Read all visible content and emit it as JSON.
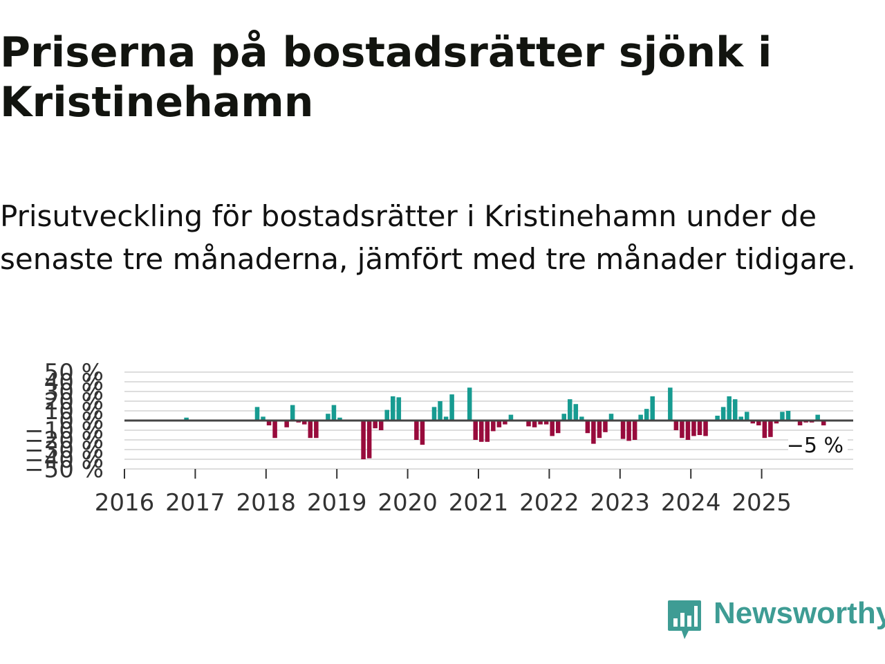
{
  "title": "Priserna på bostadsrätter sjönk i Kristinehamn",
  "subtitle": "Prisutveckling för bostadsrätter i Kristinehamn under de senaste tre månaderna, jämfört med tre månader tidigare.",
  "brand": {
    "name": "Newsworthy"
  },
  "colors": {
    "positive": "#179b91",
    "negative": "#980b3c",
    "grid": "#dddddd",
    "zero": "#444444",
    "brand": "#3e9c94"
  },
  "chart_data": {
    "type": "bar",
    "title": "",
    "xlabel": "",
    "ylabel": "",
    "ylim": [
      -50,
      50
    ],
    "y_ticks": [
      -50,
      -40,
      -30,
      -20,
      -10,
      0,
      10,
      20,
      30,
      40,
      50
    ],
    "y_tick_labels": [
      "−50 %",
      "−40 %",
      "−30 %",
      "−20 %",
      "−10 %",
      "0 %",
      "10 %",
      "20 %",
      "30 %",
      "40 %",
      "50 %"
    ],
    "x_tick_labels": [
      "2016",
      "2017",
      "2018",
      "2019",
      "2020",
      "2021",
      "2022",
      "2023",
      "2024",
      "2025"
    ],
    "start": "2016-01",
    "values": [
      null,
      null,
      null,
      null,
      null,
      null,
      null,
      null,
      null,
      null,
      3,
      null,
      null,
      null,
      null,
      null,
      null,
      null,
      null,
      null,
      null,
      null,
      14,
      4,
      -5,
      -18,
      null,
      -7,
      16,
      -2,
      -4,
      -18,
      -18,
      null,
      7,
      16,
      3,
      -1,
      null,
      null,
      -40,
      -39,
      -8,
      -10,
      11,
      25,
      24,
      null,
      null,
      -20,
      -25,
      null,
      14,
      20,
      4,
      27,
      null,
      null,
      34,
      -20,
      -22,
      -22,
      -11,
      -7,
      -4,
      6,
      null,
      null,
      -6,
      -7,
      -4,
      -4,
      -16,
      -13,
      7,
      22,
      17,
      4,
      -13,
      -24,
      -18,
      -12,
      7,
      null,
      -19,
      -21,
      -20,
      6,
      12,
      25,
      null,
      null,
      34,
      -10,
      -18,
      -20,
      -16,
      -15,
      -16,
      null,
      5,
      14,
      25,
      22,
      4,
      9,
      -3,
      -5,
      -18,
      -17,
      -3,
      9,
      10,
      null,
      -5,
      -2,
      -2,
      6,
      -5
    ],
    "last_value_label": "−5 %"
  }
}
